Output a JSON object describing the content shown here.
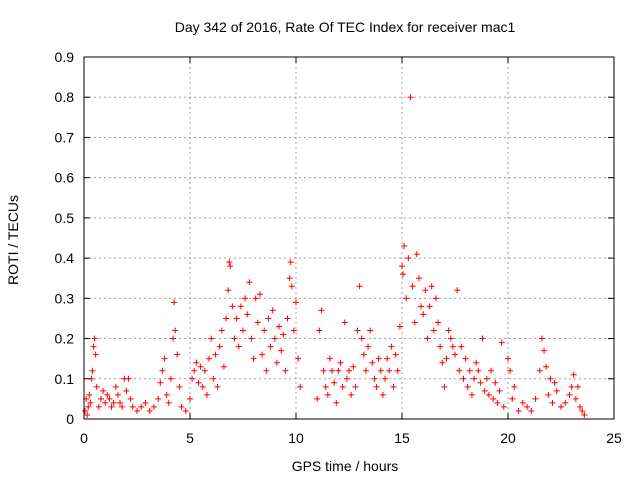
{
  "chart_data": {
    "type": "scatter",
    "title": "Day 342 of 2016, Rate Of TEC Index for receiver mac1",
    "xlabel": "GPS time / hours",
    "ylabel": "ROTI / TECUs",
    "xlim": [
      0,
      25
    ],
    "ylim": [
      0,
      0.9
    ],
    "xticks": [
      0,
      5,
      10,
      15,
      20,
      25
    ],
    "yticks": [
      0,
      0.1,
      0.2,
      0.3,
      0.4,
      0.5,
      0.6,
      0.7,
      0.8,
      0.9
    ],
    "grid": true,
    "marker": "plus",
    "color": "#ff0000",
    "series": [
      {
        "points": [
          [
            0.05,
            0.02
          ],
          [
            0.1,
            0.05
          ],
          [
            0.15,
            0.01
          ],
          [
            0.2,
            0.03
          ],
          [
            0.25,
            0.06
          ],
          [
            0.3,
            0.04
          ],
          [
            0.35,
            0.1
          ],
          [
            0.4,
            0.12
          ],
          [
            0.45,
            0.18
          ],
          [
            0.5,
            0.2
          ],
          [
            0.55,
            0.16
          ],
          [
            0.6,
            0.08
          ],
          [
            0.7,
            0.03
          ],
          [
            0.8,
            0.05
          ],
          [
            0.9,
            0.07
          ],
          [
            1.0,
            0.04
          ],
          [
            1.1,
            0.06
          ],
          [
            1.2,
            0.05
          ],
          [
            1.3,
            0.03
          ],
          [
            1.4,
            0.04
          ],
          [
            1.5,
            0.08
          ],
          [
            1.6,
            0.06
          ],
          [
            1.7,
            0.04
          ],
          [
            1.8,
            0.03
          ],
          [
            1.9,
            0.1
          ],
          [
            2.0,
            0.07
          ],
          [
            2.1,
            0.1
          ],
          [
            2.2,
            0.05
          ],
          [
            2.3,
            0.03
          ],
          [
            2.5,
            0.02
          ],
          [
            2.7,
            0.03
          ],
          [
            2.9,
            0.04
          ],
          [
            3.1,
            0.02
          ],
          [
            3.3,
            0.03
          ],
          [
            3.5,
            0.05
          ],
          [
            3.6,
            0.09
          ],
          [
            3.7,
            0.12
          ],
          [
            3.8,
            0.15
          ],
          [
            3.9,
            0.06
          ],
          [
            4.0,
            0.04
          ],
          [
            4.1,
            0.1
          ],
          [
            4.2,
            0.2
          ],
          [
            4.25,
            0.29
          ],
          [
            4.3,
            0.22
          ],
          [
            4.4,
            0.16
          ],
          [
            4.5,
            0.08
          ],
          [
            4.6,
            0.03
          ],
          [
            4.8,
            0.02
          ],
          [
            5.0,
            0.05
          ],
          [
            5.1,
            0.1
          ],
          [
            5.2,
            0.12
          ],
          [
            5.3,
            0.14
          ],
          [
            5.4,
            0.09
          ],
          [
            5.5,
            0.13
          ],
          [
            5.6,
            0.08
          ],
          [
            5.7,
            0.12
          ],
          [
            5.8,
            0.06
          ],
          [
            5.9,
            0.15
          ],
          [
            6.0,
            0.2
          ],
          [
            6.1,
            0.1
          ],
          [
            6.2,
            0.16
          ],
          [
            6.3,
            0.08
          ],
          [
            6.4,
            0.18
          ],
          [
            6.5,
            0.22
          ],
          [
            6.6,
            0.13
          ],
          [
            6.7,
            0.25
          ],
          [
            6.8,
            0.32
          ],
          [
            6.85,
            0.39
          ],
          [
            6.9,
            0.38
          ],
          [
            7.0,
            0.28
          ],
          [
            7.1,
            0.2
          ],
          [
            7.2,
            0.25
          ],
          [
            7.3,
            0.18
          ],
          [
            7.4,
            0.28
          ],
          [
            7.5,
            0.22
          ],
          [
            7.6,
            0.3
          ],
          [
            7.7,
            0.26
          ],
          [
            7.8,
            0.34
          ],
          [
            7.9,
            0.2
          ],
          [
            8.0,
            0.15
          ],
          [
            8.1,
            0.3
          ],
          [
            8.2,
            0.24
          ],
          [
            8.3,
            0.31
          ],
          [
            8.4,
            0.16
          ],
          [
            8.5,
            0.22
          ],
          [
            8.6,
            0.12
          ],
          [
            8.7,
            0.25
          ],
          [
            8.8,
            0.18
          ],
          [
            8.9,
            0.27
          ],
          [
            9.0,
            0.2
          ],
          [
            9.1,
            0.14
          ],
          [
            9.2,
            0.23
          ],
          [
            9.3,
            0.17
          ],
          [
            9.4,
            0.21
          ],
          [
            9.5,
            0.12
          ],
          [
            9.6,
            0.25
          ],
          [
            9.7,
            0.35
          ],
          [
            9.75,
            0.39
          ],
          [
            9.8,
            0.33
          ],
          [
            9.9,
            0.22
          ],
          [
            10.0,
            0.29
          ],
          [
            10.1,
            0.15
          ],
          [
            10.2,
            0.08
          ],
          [
            11.0,
            0.05
          ],
          [
            11.1,
            0.22
          ],
          [
            11.2,
            0.27
          ],
          [
            11.3,
            0.12
          ],
          [
            11.4,
            0.08
          ],
          [
            11.5,
            0.06
          ],
          [
            11.6,
            0.15
          ],
          [
            11.7,
            0.12
          ],
          [
            11.8,
            0.09
          ],
          [
            11.9,
            0.04
          ],
          [
            12.0,
            0.12
          ],
          [
            12.1,
            0.14
          ],
          [
            12.2,
            0.08
          ],
          [
            12.3,
            0.24
          ],
          [
            12.4,
            0.1
          ],
          [
            12.5,
            0.12
          ],
          [
            12.6,
            0.06
          ],
          [
            12.7,
            0.13
          ],
          [
            12.8,
            0.08
          ],
          [
            12.9,
            0.22
          ],
          [
            13.0,
            0.33
          ],
          [
            13.1,
            0.2
          ],
          [
            13.2,
            0.16
          ],
          [
            13.3,
            0.12
          ],
          [
            13.4,
            0.18
          ],
          [
            13.5,
            0.22
          ],
          [
            13.6,
            0.14
          ],
          [
            13.7,
            0.1
          ],
          [
            13.8,
            0.08
          ],
          [
            13.9,
            0.15
          ],
          [
            14.0,
            0.12
          ],
          [
            14.1,
            0.06
          ],
          [
            14.2,
            0.1
          ],
          [
            14.3,
            0.15
          ],
          [
            14.4,
            0.12
          ],
          [
            14.5,
            0.18
          ],
          [
            14.6,
            0.08
          ],
          [
            14.7,
            0.16
          ],
          [
            14.8,
            0.12
          ],
          [
            14.9,
            0.23
          ],
          [
            15.0,
            0.38
          ],
          [
            15.05,
            0.36
          ],
          [
            15.1,
            0.43
          ],
          [
            15.2,
            0.3
          ],
          [
            15.3,
            0.4
          ],
          [
            15.4,
            0.8
          ],
          [
            15.5,
            0.33
          ],
          [
            15.6,
            0.24
          ],
          [
            15.7,
            0.41
          ],
          [
            15.8,
            0.35
          ],
          [
            15.9,
            0.28
          ],
          [
            16.0,
            0.26
          ],
          [
            16.1,
            0.32
          ],
          [
            16.2,
            0.2
          ],
          [
            16.3,
            0.28
          ],
          [
            16.4,
            0.33
          ],
          [
            16.5,
            0.22
          ],
          [
            16.6,
            0.3
          ],
          [
            16.7,
            0.24
          ],
          [
            16.8,
            0.18
          ],
          [
            16.9,
            0.14
          ],
          [
            17.0,
            0.08
          ],
          [
            17.1,
            0.15
          ],
          [
            17.2,
            0.22
          ],
          [
            17.3,
            0.2
          ],
          [
            17.4,
            0.18
          ],
          [
            17.5,
            0.16
          ],
          [
            17.6,
            0.32
          ],
          [
            17.7,
            0.12
          ],
          [
            17.8,
            0.18
          ],
          [
            17.9,
            0.1
          ],
          [
            18.0,
            0.15
          ],
          [
            18.1,
            0.08
          ],
          [
            18.2,
            0.12
          ],
          [
            18.3,
            0.06
          ],
          [
            18.4,
            0.1
          ],
          [
            18.5,
            0.14
          ],
          [
            18.6,
            0.12
          ],
          [
            18.7,
            0.09
          ],
          [
            18.8,
            0.2
          ],
          [
            18.9,
            0.07
          ],
          [
            19.0,
            0.1
          ],
          [
            19.1,
            0.06
          ],
          [
            19.2,
            0.12
          ],
          [
            19.3,
            0.05
          ],
          [
            19.4,
            0.09
          ],
          [
            19.5,
            0.04
          ],
          [
            19.6,
            0.07
          ],
          [
            19.7,
            0.19
          ],
          [
            19.8,
            0.03
          ],
          [
            20.0,
            0.15
          ],
          [
            20.1,
            0.12
          ],
          [
            20.2,
            0.05
          ],
          [
            20.3,
            0.08
          ],
          [
            20.5,
            0.02
          ],
          [
            20.7,
            0.04
          ],
          [
            20.9,
            0.03
          ],
          [
            21.1,
            0.02
          ],
          [
            21.3,
            0.05
          ],
          [
            21.5,
            0.12
          ],
          [
            21.6,
            0.2
          ],
          [
            21.7,
            0.17
          ],
          [
            21.8,
            0.13
          ],
          [
            21.9,
            0.06
          ],
          [
            22.0,
            0.1
          ],
          [
            22.1,
            0.04
          ],
          [
            22.2,
            0.09
          ],
          [
            22.3,
            0.07
          ],
          [
            22.5,
            0.03
          ],
          [
            22.7,
            0.04
          ],
          [
            22.9,
            0.06
          ],
          [
            23.0,
            0.08
          ],
          [
            23.1,
            0.11
          ],
          [
            23.2,
            0.05
          ],
          [
            23.3,
            0.08
          ],
          [
            23.4,
            0.03
          ],
          [
            23.5,
            0.02
          ],
          [
            23.6,
            0.01
          ]
        ]
      }
    ]
  }
}
